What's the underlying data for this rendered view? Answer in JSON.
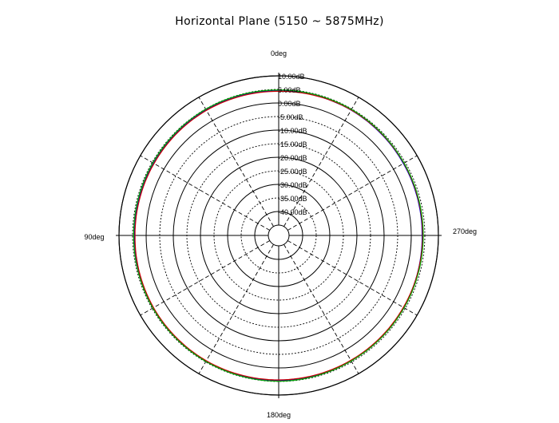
{
  "chart_data": {
    "type": "polar-line",
    "title": "Horizontal Plane (5150 ~ 5875MHz)",
    "angle_labels": [
      "0deg",
      "90deg",
      "180deg",
      "270deg"
    ],
    "radial_ticks": [
      {
        "value": 10,
        "label": "10.00dB"
      },
      {
        "value": 5,
        "label": "5.00dB"
      },
      {
        "value": 0,
        "label": "0.00dB"
      },
      {
        "value": -5,
        "label": "-5.00dB"
      },
      {
        "value": -10,
        "label": "-10.00dB"
      },
      {
        "value": -15,
        "label": "-15.00dB"
      },
      {
        "value": -20,
        "label": "-20.00dB"
      },
      {
        "value": -25,
        "label": "-25.00dB"
      },
      {
        "value": -30,
        "label": "-30.00dB"
      },
      {
        "value": -35,
        "label": "-35.00dB"
      },
      {
        "value": -40,
        "label": "-40.00dB"
      }
    ],
    "r_range_db": [
      -45,
      10
    ],
    "angle_direction": "counterclockwise from top",
    "angle_spokes_deg": 30,
    "series": [
      {
        "color": "#0000cc",
        "angles_deg": [
          0,
          30,
          60,
          90,
          120,
          150,
          180,
          210,
          240,
          270,
          300,
          330
        ],
        "gain_db": [
          4.5,
          4.6,
          4.4,
          4.3,
          4.5,
          4.7,
          4.6,
          4.4,
          4.3,
          4.0,
          4.2,
          4.5
        ]
      },
      {
        "color": "#cc0000",
        "angles_deg": [
          0,
          30,
          60,
          90,
          120,
          150,
          180,
          210,
          240,
          270,
          300,
          330
        ],
        "gain_db": [
          4.3,
          4.4,
          4.2,
          4.1,
          4.4,
          4.5,
          4.4,
          4.3,
          4.2,
          4.2,
          4.4,
          4.6
        ]
      },
      {
        "color": "#00aa00",
        "angles_deg": [
          0,
          30,
          60,
          90,
          120,
          150,
          180,
          210,
          240,
          270,
          300,
          330
        ],
        "gain_db": [
          4.8,
          4.9,
          4.7,
          4.6,
          4.7,
          4.8,
          4.9,
          4.6,
          4.5,
          4.4,
          4.5,
          4.8
        ]
      }
    ]
  }
}
